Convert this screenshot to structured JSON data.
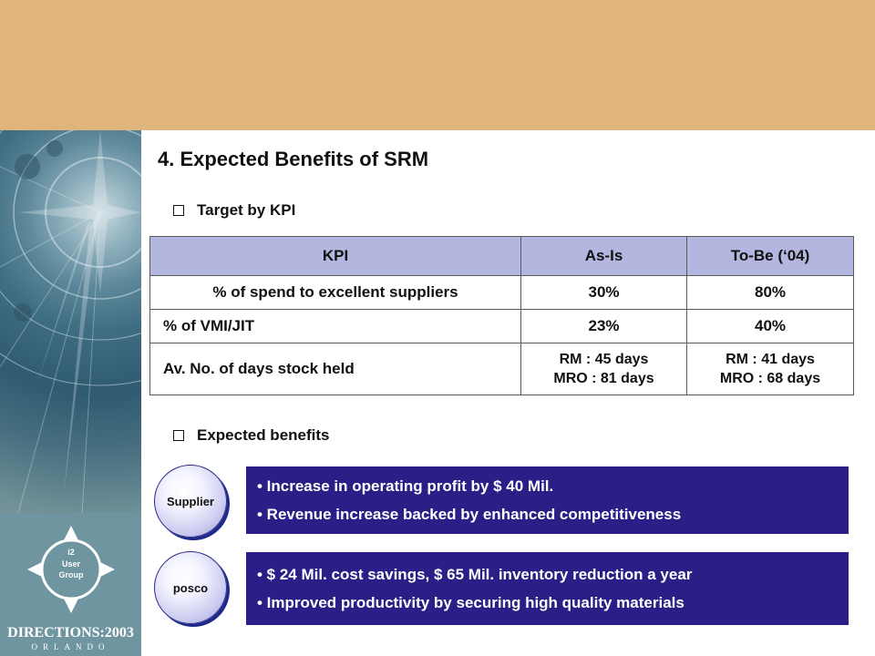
{
  "slide": {
    "title": "4. Expected Benefits of SRM"
  },
  "section_kpi": {
    "label": "Target by KPI"
  },
  "kpi_table": {
    "headers": [
      "KPI",
      "As-Is",
      "To-Be (‘04)"
    ],
    "rows": [
      {
        "kpi": "% of spend to excellent suppliers",
        "as_is": "30%",
        "to_be": "80%"
      },
      {
        "kpi": "% of VMI/JIT",
        "as_is": "23%",
        "to_be": "40%"
      },
      {
        "kpi": "Av. No. of days stock held",
        "as_is": [
          "RM : 45 days",
          "MRO : 81 days"
        ],
        "to_be": [
          "RM : 41 days",
          "MRO : 68 days"
        ]
      }
    ]
  },
  "section_benefits": {
    "label": "Expected benefits"
  },
  "benefits": [
    {
      "category": "Supplier",
      "items": [
        "• Increase in operating profit by $ 40 Mil.",
        "• Revenue increase backed by enhanced competitiveness"
      ]
    },
    {
      "category": "posco",
      "items": [
        "• $ 24 Mil. cost savings, $ 65 Mil. inventory reduction a year",
        "• Improved productivity by securing high quality materials"
      ]
    }
  ],
  "logo": {
    "line1": "DIRECTIONS:2003",
    "line2": "ORLANDO",
    "badge_top": "i2",
    "badge_mid": "User",
    "badge_bot": "Group"
  },
  "colors": {
    "top_band": "#e0b57c",
    "table_header": "#b3b6df",
    "benefit_box": "#2a1f86"
  }
}
